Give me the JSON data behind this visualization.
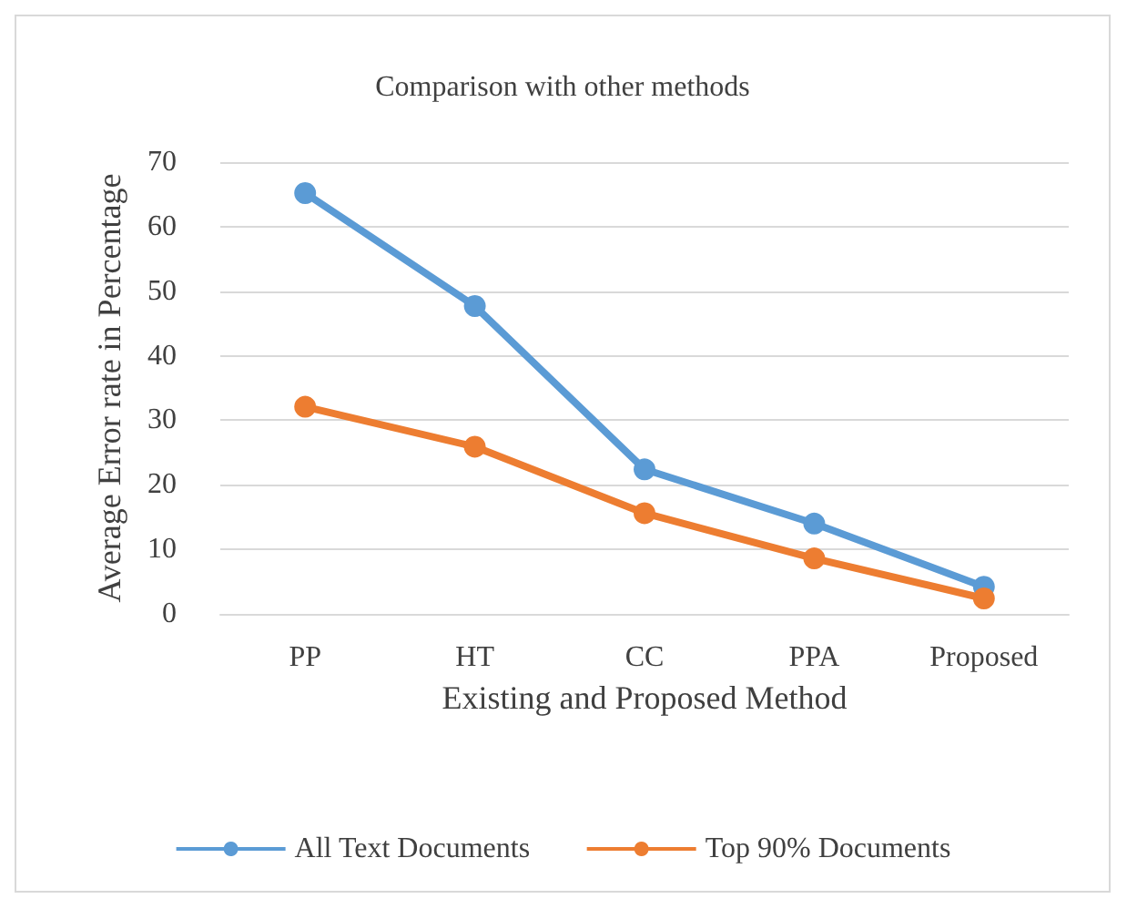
{
  "chart_data": {
    "type": "line",
    "title": "Comparison with other methods",
    "xlabel": "Existing and Proposed Method",
    "ylabel": "Average Error rate in Percentage",
    "categories": [
      "PP",
      "HT",
      "CC",
      "PPA",
      "Proposed"
    ],
    "series": [
      {
        "name": "All Text Documents",
        "color": "#5b9bd5",
        "values": [
          65.2,
          47.7,
          22.4,
          14,
          4.2
        ]
      },
      {
        "name": "Top 90% Documents",
        "color": "#ed7d31",
        "values": [
          32.1,
          25.9,
          15.6,
          8.6,
          2.4
        ]
      }
    ],
    "ylim": [
      0,
      70
    ],
    "yticks": [
      0,
      10,
      20,
      30,
      40,
      50,
      60,
      70
    ],
    "grid": "y",
    "legend": "bottom",
    "marker": "circle",
    "line_style": "solid"
  }
}
